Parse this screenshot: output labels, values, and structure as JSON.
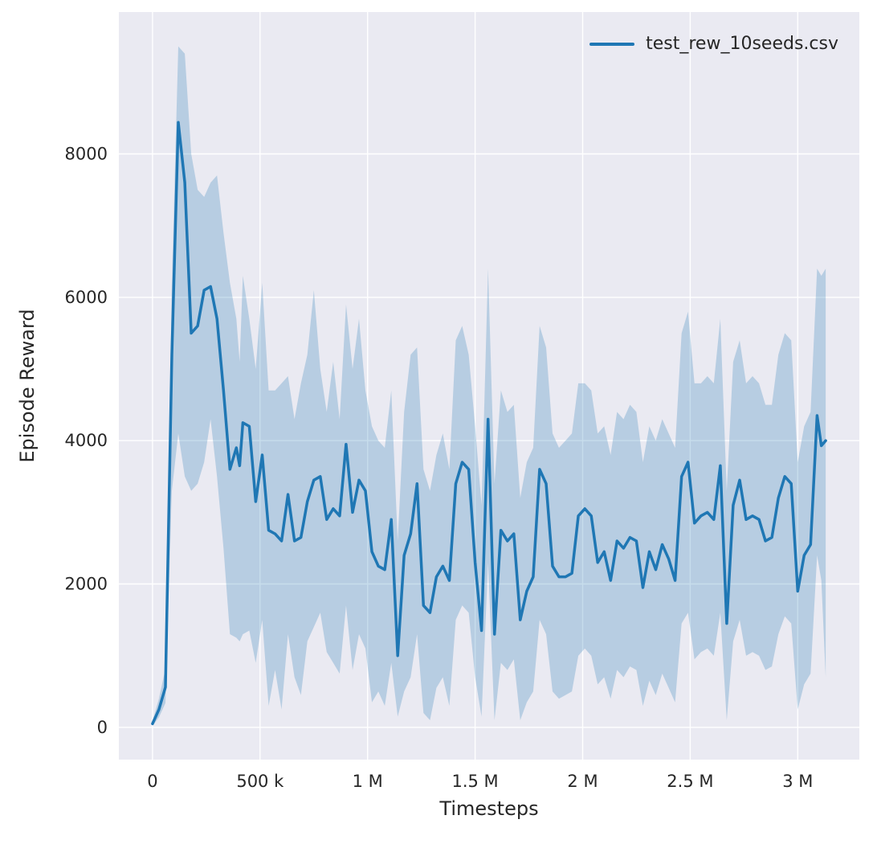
{
  "chart_data": {
    "type": "line",
    "title": "",
    "xlabel": "Timesteps",
    "ylabel": "Episode Reward",
    "grid": true,
    "legend": {
      "position": "upper right",
      "entries": [
        {
          "label": "test_rew_10seeds.csv",
          "color": "#1f77b4"
        }
      ]
    },
    "xlim": [
      -156500,
      3286500
    ],
    "ylim": [
      -450,
      9980
    ],
    "x_ticks": {
      "values": [
        0,
        500000,
        1000000,
        1500000,
        2000000,
        2500000,
        3000000
      ],
      "labels": [
        "0",
        "500 k",
        "1 M",
        "1.5 M",
        "2 M",
        "2.5 M",
        "3 M"
      ]
    },
    "y_ticks": {
      "values": [
        0,
        2000,
        4000,
        6000,
        8000
      ],
      "labels": [
        "0",
        "2000",
        "4000",
        "6000",
        "8000"
      ]
    },
    "colors": {
      "line": "#1f77b4",
      "band_fill": "#1f77b4",
      "band_opacity": 0.25,
      "plot_background": "#eaeaf2",
      "grid": "#ffffff",
      "text": "#262626"
    },
    "series": [
      {
        "name": "test_rew_10seeds.csv",
        "point_format": [
          "timestep",
          "mean",
          "band_low",
          "band_high"
        ],
        "points": [
          [
            0,
            50,
            20,
            90
          ],
          [
            30000,
            250,
            140,
            400
          ],
          [
            60000,
            560,
            340,
            820
          ],
          [
            90000,
            5200,
            3300,
            6200
          ],
          [
            120000,
            8440,
            4100,
            9500
          ],
          [
            150000,
            7600,
            3500,
            9400
          ],
          [
            180000,
            5500,
            3300,
            8000
          ],
          [
            210000,
            5600,
            3400,
            7500
          ],
          [
            240000,
            6100,
            3700,
            7400
          ],
          [
            270000,
            6150,
            4300,
            7600
          ],
          [
            300000,
            5700,
            3500,
            7700
          ],
          [
            330000,
            4700,
            2500,
            6900
          ],
          [
            360000,
            3600,
            1300,
            6200
          ],
          [
            390000,
            3900,
            1250,
            5700
          ],
          [
            405000,
            3650,
            1200,
            5100
          ],
          [
            420000,
            4250,
            1300,
            6300
          ],
          [
            450000,
            4200,
            1350,
            5700
          ],
          [
            480000,
            3150,
            900,
            5000
          ],
          [
            510000,
            3800,
            1500,
            6200
          ],
          [
            540000,
            2750,
            300,
            4700
          ],
          [
            570000,
            2700,
            800,
            4700
          ],
          [
            600000,
            2600,
            250,
            4800
          ],
          [
            630000,
            3250,
            1300,
            4900
          ],
          [
            660000,
            2600,
            700,
            4300
          ],
          [
            690000,
            2650,
            450,
            4800
          ],
          [
            720000,
            3150,
            1200,
            5200
          ],
          [
            750000,
            3450,
            1400,
            6100
          ],
          [
            780000,
            3500,
            1600,
            5000
          ],
          [
            810000,
            2900,
            1050,
            4400
          ],
          [
            840000,
            3050,
            900,
            5100
          ],
          [
            870000,
            2950,
            750,
            4300
          ],
          [
            900000,
            3950,
            1700,
            5900
          ],
          [
            930000,
            3000,
            800,
            5000
          ],
          [
            960000,
            3450,
            1300,
            5700
          ],
          [
            990000,
            3300,
            1100,
            4700
          ],
          [
            1020000,
            2450,
            350,
            4200
          ],
          [
            1050000,
            2250,
            500,
            4000
          ],
          [
            1080000,
            2200,
            300,
            3900
          ],
          [
            1110000,
            2900,
            900,
            4700
          ],
          [
            1140000,
            1000,
            150,
            2600
          ],
          [
            1170000,
            2400,
            500,
            4400
          ],
          [
            1200000,
            2700,
            700,
            5200
          ],
          [
            1230000,
            3400,
            1300,
            5300
          ],
          [
            1260000,
            1700,
            200,
            3600
          ],
          [
            1290000,
            1600,
            100,
            3300
          ],
          [
            1320000,
            2100,
            550,
            3800
          ],
          [
            1350000,
            2250,
            700,
            4100
          ],
          [
            1380000,
            2050,
            300,
            3600
          ],
          [
            1410000,
            3400,
            1500,
            5400
          ],
          [
            1440000,
            3700,
            1700,
            5600
          ],
          [
            1470000,
            3600,
            1600,
            5200
          ],
          [
            1500000,
            2300,
            700,
            4200
          ],
          [
            1530000,
            1350,
            150,
            3100
          ],
          [
            1560000,
            4300,
            2300,
            6400
          ],
          [
            1590000,
            1300,
            100,
            3400
          ],
          [
            1620000,
            2750,
            900,
            4700
          ],
          [
            1650000,
            2600,
            800,
            4400
          ],
          [
            1680000,
            2700,
            950,
            4500
          ],
          [
            1710000,
            1500,
            100,
            3200
          ],
          [
            1740000,
            1900,
            350,
            3700
          ],
          [
            1770000,
            2100,
            500,
            3900
          ],
          [
            1800000,
            3600,
            1500,
            5600
          ],
          [
            1830000,
            3400,
            1300,
            5300
          ],
          [
            1860000,
            2250,
            500,
            4100
          ],
          [
            1890000,
            2100,
            400,
            3900
          ],
          [
            1920000,
            2100,
            450,
            4000
          ],
          [
            1950000,
            2150,
            500,
            4100
          ],
          [
            1980000,
            2950,
            1000,
            4800
          ],
          [
            2010000,
            3050,
            1100,
            4800
          ],
          [
            2040000,
            2950,
            1000,
            4700
          ],
          [
            2070000,
            2300,
            600,
            4100
          ],
          [
            2100000,
            2450,
            700,
            4200
          ],
          [
            2130000,
            2050,
            400,
            3800
          ],
          [
            2160000,
            2600,
            800,
            4400
          ],
          [
            2190000,
            2500,
            700,
            4300
          ],
          [
            2220000,
            2650,
            850,
            4500
          ],
          [
            2250000,
            2600,
            800,
            4400
          ],
          [
            2280000,
            1950,
            300,
            3700
          ],
          [
            2310000,
            2450,
            650,
            4200
          ],
          [
            2340000,
            2200,
            450,
            4000
          ],
          [
            2370000,
            2550,
            750,
            4300
          ],
          [
            2400000,
            2350,
            550,
            4100
          ],
          [
            2430000,
            2050,
            350,
            3900
          ],
          [
            2460000,
            3500,
            1450,
            5500
          ],
          [
            2490000,
            3700,
            1600,
            5800
          ],
          [
            2520000,
            2850,
            950,
            4800
          ],
          [
            2550000,
            2950,
            1050,
            4800
          ],
          [
            2580000,
            3000,
            1100,
            4900
          ],
          [
            2610000,
            2900,
            1000,
            4800
          ],
          [
            2640000,
            3650,
            1600,
            5700
          ],
          [
            2670000,
            1450,
            100,
            3300
          ],
          [
            2700000,
            3100,
            1200,
            5100
          ],
          [
            2730000,
            3450,
            1500,
            5400
          ],
          [
            2760000,
            2900,
            1000,
            4800
          ],
          [
            2790000,
            2950,
            1050,
            4900
          ],
          [
            2820000,
            2900,
            1000,
            4800
          ],
          [
            2850000,
            2600,
            800,
            4500
          ],
          [
            2880000,
            2650,
            850,
            4500
          ],
          [
            2910000,
            3200,
            1300,
            5200
          ],
          [
            2940000,
            3500,
            1550,
            5500
          ],
          [
            2970000,
            3400,
            1450,
            5400
          ],
          [
            3000000,
            1900,
            250,
            3700
          ],
          [
            3030000,
            2400,
            600,
            4200
          ],
          [
            3060000,
            2550,
            750,
            4400
          ],
          [
            3090000,
            4350,
            2400,
            6400
          ],
          [
            3110000,
            3930,
            2050,
            6300
          ],
          [
            3130000,
            4000,
            700,
            6400
          ]
        ]
      }
    ]
  }
}
